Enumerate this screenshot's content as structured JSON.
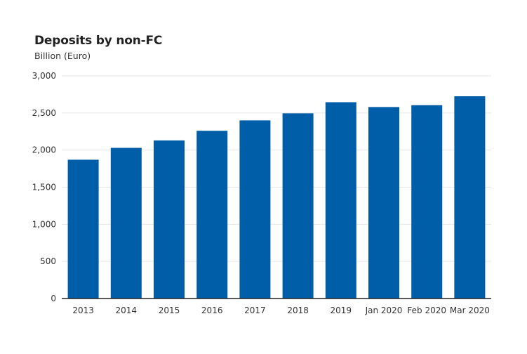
{
  "chart_data": {
    "type": "bar",
    "title": "Deposits by non-FC",
    "subtitle": "Billion (Euro)",
    "xlabel": "",
    "ylabel": "",
    "categories": [
      "2013",
      "2014",
      "2015",
      "2016",
      "2017",
      "2018",
      "2019",
      "Jan 2020",
      "Feb 2020",
      "Mar 2020"
    ],
    "values": [
      1870,
      2030,
      2130,
      2260,
      2400,
      2495,
      2645,
      2580,
      2605,
      2725
    ],
    "ylim": [
      0,
      3000
    ],
    "yticks": [
      0,
      500,
      1000,
      1500,
      2000,
      2500,
      3000
    ],
    "ytick_labels": [
      "0",
      "500",
      "1,000",
      "1,500",
      "2,000",
      "2,500",
      "3,000"
    ],
    "bar_color": "#005ea8",
    "grid": true,
    "legend": "none"
  }
}
